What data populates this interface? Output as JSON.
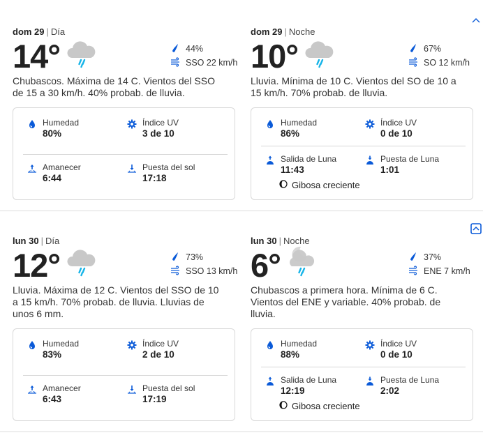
{
  "colors": {
    "accent": "#0a5ad8",
    "rain": "#16b4e8",
    "cloud": "#c8c8c8"
  },
  "days": [
    {
      "toggle_icon": "chevron-up-icon",
      "periods": [
        {
          "day": "dom 29",
          "part": "Día",
          "temp": "14°",
          "icon": "cloud-rain-icon",
          "precip": "44%",
          "wind": "SSO 22 km/h",
          "desc": "Chubascos. Máxima de 14 C. Vientos del SSO de 15 a 30 km/h. 40% probab. de lluvia.",
          "kind": "day",
          "details": [
            {
              "icon": "humidity-icon",
              "label": "Humedad",
              "value": "80%"
            },
            {
              "icon": "uv-index-icon",
              "label": "Índice UV",
              "value": "3 de 10"
            },
            {
              "icon": "sunrise-icon",
              "label": "Amanecer",
              "value": "6:44"
            },
            {
              "icon": "sunset-icon",
              "label": "Puesta del sol",
              "value": "17:18"
            }
          ]
        },
        {
          "day": "dom 29",
          "part": "Noche",
          "temp": "10°",
          "icon": "cloud-rain-icon",
          "precip": "67%",
          "wind": "SO 12 km/h",
          "desc": "Lluvia. Mínima de 10 C. Vientos del SO de 10 a 15 km/h. 70% probab. de lluvia.",
          "kind": "night",
          "details": [
            {
              "icon": "humidity-icon",
              "label": "Humedad",
              "value": "86%"
            },
            {
              "icon": "uv-index-icon",
              "label": "Índice UV",
              "value": "0 de 10"
            },
            {
              "icon": "moonrise-icon",
              "label": "Salida de Luna",
              "value": "11:43"
            },
            {
              "icon": "moonset-icon",
              "label": "Puesta de Luna",
              "value": "1:01"
            }
          ],
          "moon_phase": "Gibosa creciente"
        }
      ]
    },
    {
      "toggle_icon": "chevron-up-box-icon",
      "periods": [
        {
          "day": "lun 30",
          "part": "Día",
          "temp": "12°",
          "icon": "cloud-rain-icon",
          "precip": "73%",
          "wind": "SSO 13 km/h",
          "desc": "Lluvia. Máxima de 12 C. Vientos del SSO de 10 a 15 km/h. 70% probab. de lluvia. Lluvias de unos 6 mm.",
          "kind": "day",
          "details": [
            {
              "icon": "humidity-icon",
              "label": "Humedad",
              "value": "83%"
            },
            {
              "icon": "uv-index-icon",
              "label": "Índice UV",
              "value": "2 de 10"
            },
            {
              "icon": "sunrise-icon",
              "label": "Amanecer",
              "value": "6:43"
            },
            {
              "icon": "sunset-icon",
              "label": "Puesta del sol",
              "value": "17:19"
            }
          ]
        },
        {
          "day": "lun 30",
          "part": "Noche",
          "temp": "6°",
          "icon": "moon-cloud-rain-icon",
          "precip": "37%",
          "wind": "ENE 7 km/h",
          "desc": "Chubascos a primera hora. Mínima de 6 C. Vientos del ENE y variable. 40% probab. de lluvia.",
          "kind": "night",
          "details": [
            {
              "icon": "humidity-icon",
              "label": "Humedad",
              "value": "88%"
            },
            {
              "icon": "uv-index-icon",
              "label": "Índice UV",
              "value": "0 de 10"
            },
            {
              "icon": "moonrise-icon",
              "label": "Salida de Luna",
              "value": "12:19"
            },
            {
              "icon": "moonset-icon",
              "label": "Puesta de Luna",
              "value": "2:02"
            }
          ],
          "moon_phase": "Gibosa creciente"
        }
      ]
    }
  ]
}
